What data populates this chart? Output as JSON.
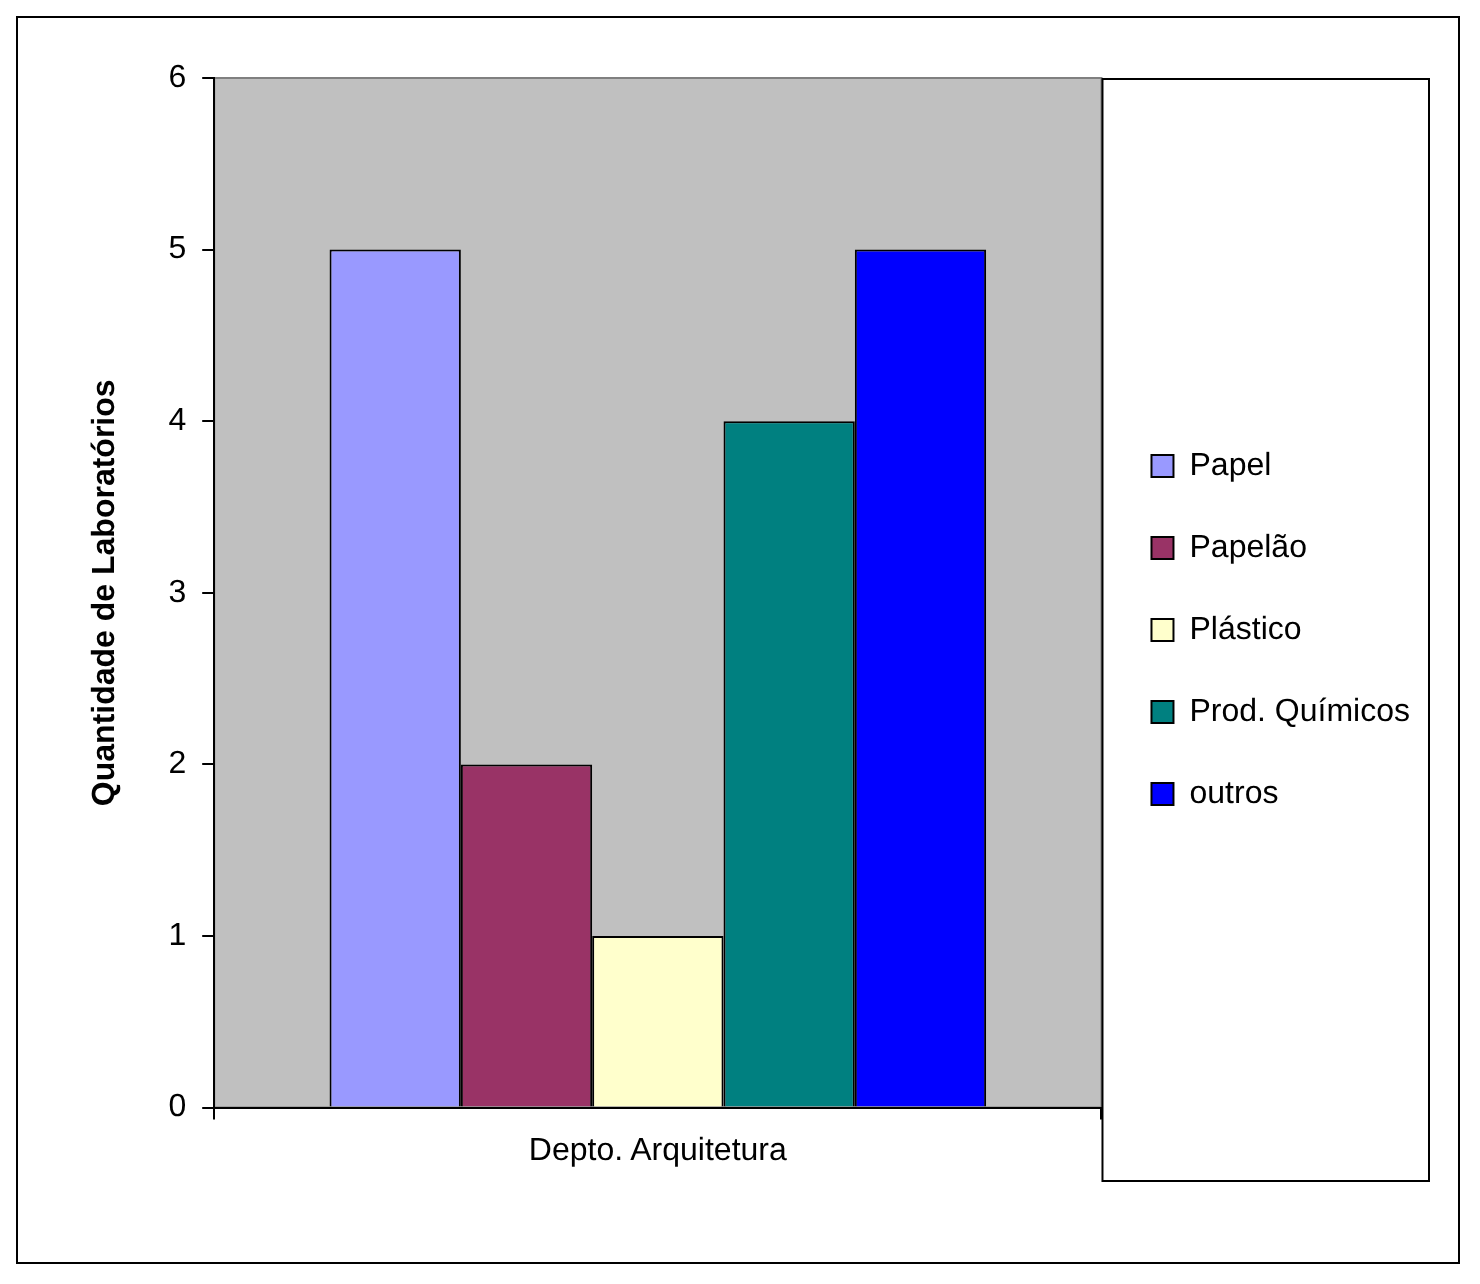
{
  "chart_data": {
    "type": "bar",
    "categories": [
      "Depto. Arquitetura"
    ],
    "ylabel": "Quantidade de Laboratórios",
    "series": [
      {
        "name": "Papel",
        "color": "#9999ff",
        "values": [
          5
        ]
      },
      {
        "name": "Papelão",
        "color": "#993366",
        "values": [
          2
        ]
      },
      {
        "name": "Plástico",
        "color": "#ffffcc",
        "values": [
          1
        ]
      },
      {
        "name": "Prod. Químicos",
        "color": "#008080",
        "values": [
          4
        ]
      },
      {
        "name": "outros",
        "color": "#0000ff",
        "values": [
          5
        ]
      }
    ],
    "ylim": [
      0,
      6
    ],
    "yticks": [
      0,
      1,
      2,
      3,
      4,
      5,
      6
    ],
    "grid": false,
    "legend": "right"
  }
}
